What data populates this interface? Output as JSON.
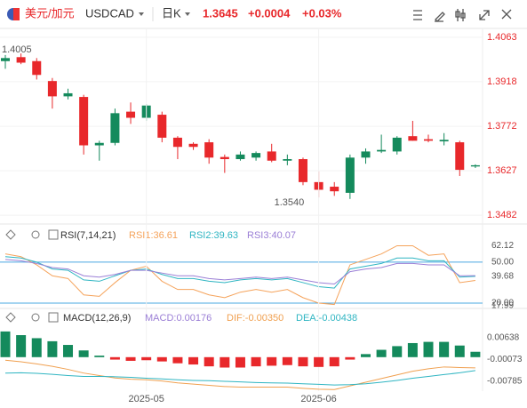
{
  "header": {
    "pair": "美元/加元",
    "symbol": "USDCAD",
    "period": "日K",
    "price": "1.3645",
    "change": "+0.0004",
    "change_pct": "+0.03%"
  },
  "chart_data": [
    {
      "type": "candlestick",
      "open": [
        1.3985,
        1.3998,
        1.3985,
        1.392,
        1.387,
        1.3868,
        1.371,
        1.3718,
        1.382,
        1.38,
        1.381,
        1.3735,
        1.3715,
        1.372,
        1.3672,
        1.3665,
        1.367,
        1.369,
        1.366,
        1.3665,
        1.359,
        1.3575,
        1.3555,
        1.367,
        1.369,
        1.369,
        1.374,
        1.373,
        1.3723,
        1.372,
        1.3641
      ],
      "high": [
        1.4005,
        1.401,
        1.3995,
        1.393,
        1.3895,
        1.3875,
        1.3725,
        1.383,
        1.385,
        1.3845,
        1.382,
        1.374,
        1.372,
        1.373,
        1.368,
        1.369,
        1.369,
        1.3715,
        1.368,
        1.367,
        1.3625,
        1.359,
        1.368,
        1.37,
        1.3745,
        1.374,
        1.379,
        1.3745,
        1.375,
        1.3725,
        1.3648
      ],
      "low": [
        1.396,
        1.3975,
        1.3925,
        1.383,
        1.386,
        1.368,
        1.366,
        1.371,
        1.378,
        1.379,
        1.372,
        1.3665,
        1.3695,
        1.365,
        1.362,
        1.366,
        1.366,
        1.3655,
        1.3645,
        1.358,
        1.354,
        1.3545,
        1.3535,
        1.365,
        1.3685,
        1.368,
        1.3725,
        1.372,
        1.371,
        1.361,
        1.3636
      ],
      "close": [
        1.3995,
        1.398,
        1.394,
        1.387,
        1.388,
        1.371,
        1.3718,
        1.3815,
        1.38,
        1.384,
        1.3735,
        1.3705,
        1.3705,
        1.367,
        1.3665,
        1.368,
        1.3685,
        1.366,
        1.3665,
        1.359,
        1.3565,
        1.356,
        1.367,
        1.369,
        1.3695,
        1.3735,
        1.3725,
        1.3725,
        1.3728,
        1.363,
        1.3645
      ],
      "colors": {
        "up": "#148a5c",
        "down": "#e8282b"
      },
      "ylim": [
        1.3459,
        1.4083
      ],
      "yticks": [
        1.4063,
        1.3918,
        1.3772,
        1.3627,
        1.3482
      ],
      "grid": true,
      "annotations": [
        {
          "label": "1.4005",
          "value": 1.4005
        },
        {
          "label": "1.3540",
          "value": 1.354
        }
      ]
    },
    {
      "type": "line",
      "title": "RSI(7,14,21)",
      "series": [
        {
          "name": "RSI1:36.61",
          "color": "#f5a35b",
          "values": [
            56,
            54,
            48,
            40,
            38,
            26,
            25,
            35,
            44,
            47,
            36,
            30,
            30,
            26,
            24,
            28,
            30,
            28,
            30,
            24,
            20,
            19,
            48,
            52,
            56,
            62,
            62,
            55,
            56,
            35,
            36.61
          ]
        },
        {
          "name": "RSI2:39.63",
          "color": "#2fb5c2",
          "values": [
            54,
            53,
            50,
            45,
            44,
            37,
            36,
            40,
            44,
            45,
            41,
            38,
            38,
            36,
            35,
            37,
            38,
            37,
            38,
            35,
            32,
            31,
            45,
            47,
            49,
            53,
            53,
            51,
            51,
            39,
            39.63
          ]
        },
        {
          "name": "RSI3:40.07",
          "color": "#9b7fd6",
          "values": [
            52,
            51,
            49,
            46,
            45,
            40,
            39,
            41,
            44,
            44,
            42,
            40,
            40,
            38,
            37,
            38,
            39,
            38,
            39,
            37,
            35,
            34,
            43,
            45,
            46,
            49,
            49,
            48,
            48,
            40,
            40.07
          ]
        }
      ],
      "ylim": [
        17.4,
        74
      ],
      "yticks": [
        {
          "value": 50,
          "label": "50.00"
        },
        {
          "value": 20,
          "label": "20.00"
        }
      ],
      "level_color": "#4aa8e0",
      "markers": [
        62.12,
        39.68,
        17.99
      ]
    },
    {
      "type": "macd",
      "title": "MACD(12,26,9)",
      "categories": [
        null,
        null,
        null,
        null,
        null,
        null,
        null,
        null,
        null,
        "2025-05",
        null,
        null,
        null,
        null,
        null,
        null,
        null,
        null,
        null,
        null,
        "2025-06",
        null,
        null,
        null,
        null,
        null,
        null,
        null,
        null,
        null,
        null
      ],
      "series": [
        {
          "name": "MACD:0.00176",
          "color": "#9b7fd6",
          "values": [
            0.0084,
            0.0072,
            0.0062,
            0.0052,
            0.004,
            0.0022,
            0.0005,
            -0.0008,
            -0.0012,
            -0.001,
            -0.0014,
            -0.002,
            -0.0024,
            -0.003,
            -0.0034,
            -0.0034,
            -0.003,
            -0.0028,
            -0.0026,
            -0.003,
            -0.0032,
            -0.003,
            -0.0008,
            0.001,
            0.0024,
            0.0036,
            0.0046,
            0.005,
            0.005,
            0.0038,
            0.00176
          ]
        },
        {
          "name": "DIF:-0.00350",
          "color": "#f0a050",
          "values": [
            -0.001,
            -0.0015,
            -0.0022,
            -0.003,
            -0.004,
            -0.0052,
            -0.006,
            -0.0068,
            -0.0072,
            -0.0074,
            -0.0078,
            -0.0084,
            -0.0088,
            -0.0092,
            -0.0096,
            -0.0098,
            -0.0098,
            -0.0098,
            -0.0098,
            -0.0102,
            -0.0105,
            -0.0106,
            -0.0094,
            -0.0082,
            -0.007,
            -0.0058,
            -0.0046,
            -0.0038,
            -0.0032,
            -0.0034,
            -0.0035
          ]
        },
        {
          "name": "DEA:-0.00438",
          "color": "#2fb5c2",
          "values": [
            -0.0052,
            -0.0051,
            -0.0053,
            -0.0056,
            -0.006,
            -0.0063,
            -0.0063,
            -0.0064,
            -0.0066,
            -0.0069,
            -0.0071,
            -0.0074,
            -0.0076,
            -0.0077,
            -0.0079,
            -0.0081,
            -0.0083,
            -0.0084,
            -0.0085,
            -0.0087,
            -0.0089,
            -0.0091,
            -0.009,
            -0.0087,
            -0.0082,
            -0.0076,
            -0.0069,
            -0.0063,
            -0.0057,
            -0.0051,
            -0.00438
          ]
        }
      ],
      "bar_colors": {
        "up": "#148a5c",
        "down": "#e8282b"
      },
      "ylim": [
        -0.0111,
        0.0136
      ],
      "yticks": [
        0.00638,
        -0.00073,
        -0.00785
      ]
    }
  ]
}
